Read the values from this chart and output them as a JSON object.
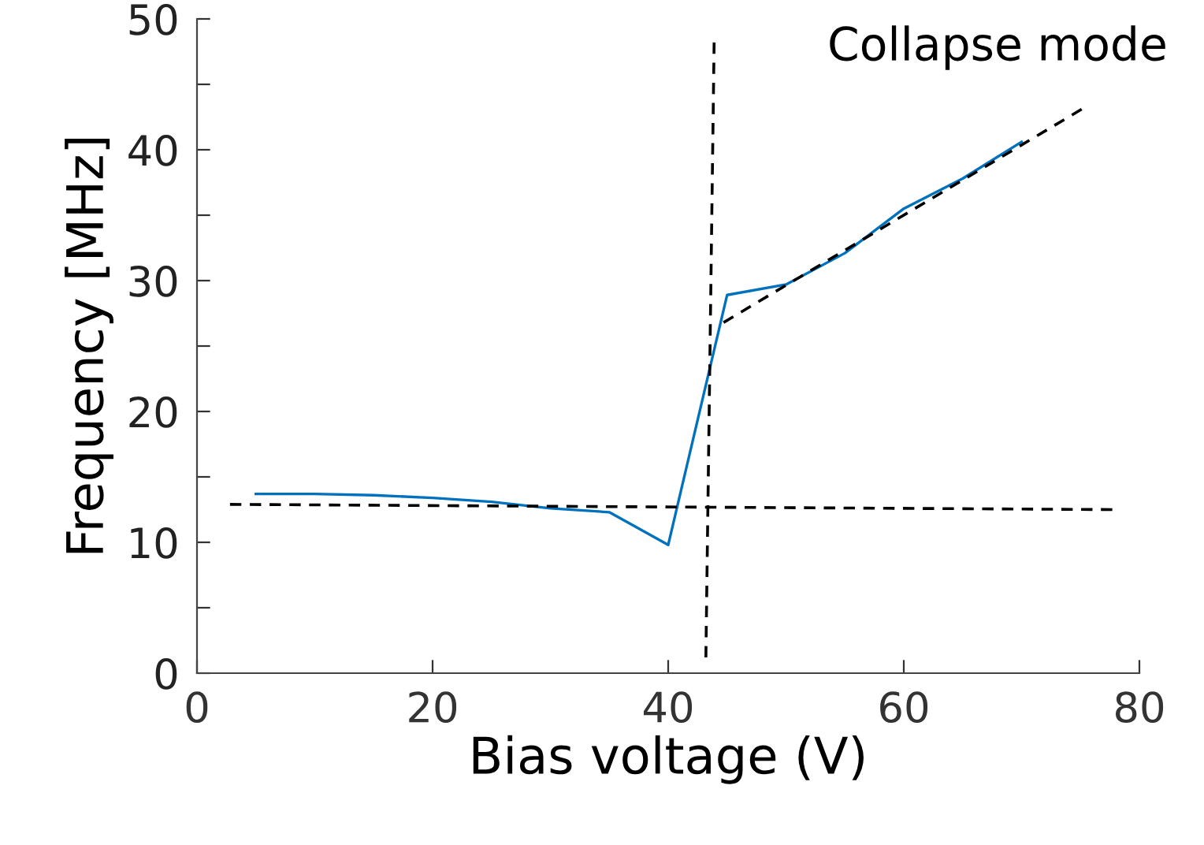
{
  "chart_data": {
    "type": "line",
    "xlabel": "Bias voltage (V)",
    "ylabel": "Frequency [MHz]",
    "annotations": [
      "Collapse mode"
    ],
    "series": [
      {
        "color": "#0072bd",
        "x": [
          5,
          10,
          15,
          20,
          25,
          30,
          35,
          40,
          45,
          50,
          55,
          60,
          65,
          70
        ],
        "values": [
          13.7,
          13.7,
          13.6,
          13.4,
          13.1,
          12.6,
          12.3,
          9.8,
          28.9,
          29.7,
          32.1,
          35.5,
          37.8,
          40.6
        ]
      },
      {
        "color": "#000000",
        "line_style": "dashed",
        "x": [
          2.8,
          77.7
        ],
        "values": [
          12.9,
          12.5
        ]
      },
      {
        "color": "#000000",
        "line_style": "dashed",
        "x": [
          43.9,
          43.2
        ],
        "values": [
          48.2,
          1.2
        ]
      },
      {
        "color": "#000000",
        "line_style": "dashed",
        "x": [
          44.7,
          75.1
        ],
        "values": [
          26.8,
          43.1
        ]
      }
    ],
    "xlim": [
      0,
      80
    ],
    "xticks": [
      0,
      20,
      40,
      60,
      80
    ],
    "ylim": [
      0,
      50
    ],
    "yticks": [
      0,
      {
        "value": 5,
        "label": null
      },
      10,
      {
        "value": 15,
        "label": null
      },
      20,
      {
        "value": 25,
        "label": null
      },
      30,
      {
        "value": 35,
        "label": null
      },
      40,
      {
        "value": 45,
        "label": null
      },
      50
    ],
    "grid": false,
    "legend": false,
    "marker": "none",
    "line_style": "solid"
  }
}
